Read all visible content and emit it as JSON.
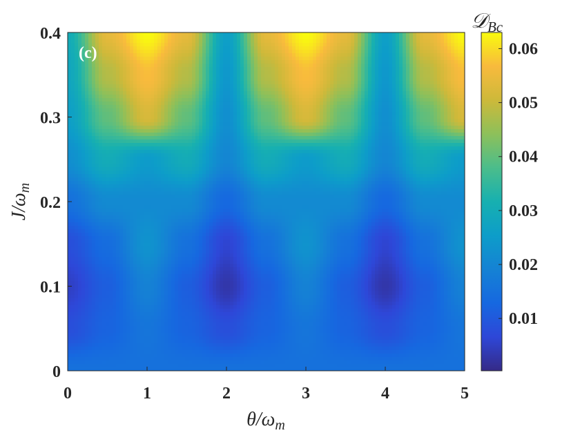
{
  "chart_data": {
    "type": "heatmap",
    "panel_label": "(c)",
    "xlabel": "θ/ω_m",
    "ylabel": "J/ω_m",
    "colorbar_label": "D_Bc",
    "xlim": [
      0,
      5
    ],
    "ylim": [
      0,
      0.4
    ],
    "x_ticks": [
      0,
      1,
      2,
      3,
      4,
      5
    ],
    "y_ticks": [
      0,
      0.1,
      0.2,
      0.3,
      0.4
    ],
    "colorbar_ticks": [
      0.01,
      0.02,
      0.03,
      0.04,
      0.05,
      0.06
    ],
    "colorbar_range": [
      0.0003,
      0.063
    ],
    "colormap": "parula",
    "grid": false,
    "y": [
      0,
      0.05,
      0.1,
      0.15,
      0.2,
      0.25,
      0.3,
      0.35,
      0.4
    ],
    "x": [
      0,
      0.5,
      1,
      1.5,
      2,
      2.5,
      3,
      3.5,
      4,
      4.5,
      5
    ],
    "z": [
      [
        0.015,
        0.015,
        0.015,
        0.015,
        0.015,
        0.015,
        0.015,
        0.015,
        0.015,
        0.015,
        0.015
      ],
      [
        0.008,
        0.012,
        0.016,
        0.012,
        0.008,
        0.012,
        0.016,
        0.012,
        0.008,
        0.012,
        0.016
      ],
      [
        0.005,
        0.011,
        0.019,
        0.011,
        0.003,
        0.011,
        0.019,
        0.011,
        0.003,
        0.011,
        0.019
      ],
      [
        0.008,
        0.014,
        0.023,
        0.015,
        0.006,
        0.015,
        0.023,
        0.015,
        0.006,
        0.015,
        0.023
      ],
      [
        0.015,
        0.021,
        0.021,
        0.021,
        0.013,
        0.021,
        0.021,
        0.021,
        0.013,
        0.021,
        0.021
      ],
      [
        0.022,
        0.03,
        0.025,
        0.03,
        0.02,
        0.03,
        0.025,
        0.03,
        0.02,
        0.03,
        0.025
      ],
      [
        0.026,
        0.04,
        0.052,
        0.04,
        0.022,
        0.04,
        0.052,
        0.04,
        0.022,
        0.04,
        0.052
      ],
      [
        0.028,
        0.048,
        0.057,
        0.048,
        0.024,
        0.048,
        0.057,
        0.048,
        0.024,
        0.048,
        0.057
      ],
      [
        0.03,
        0.054,
        0.063,
        0.054,
        0.026,
        0.054,
        0.063,
        0.054,
        0.026,
        0.054,
        0.063
      ]
    ]
  }
}
